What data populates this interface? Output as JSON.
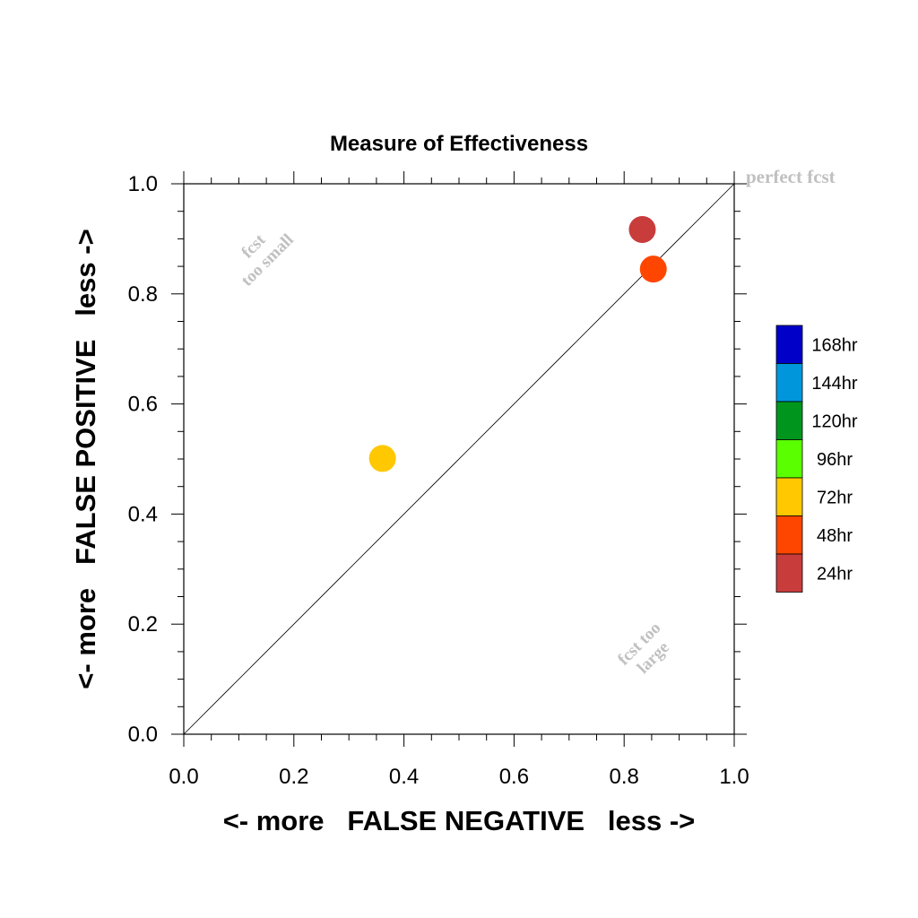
{
  "chart_data": {
    "type": "scatter",
    "title": "Measure of Effectiveness",
    "xlabel": "<- more   FALSE NEGATIVE   less ->",
    "ylabel": "<- more   FALSE POSITIVE   less ->",
    "xlim": [
      0.0,
      1.0
    ],
    "ylim": [
      0.0,
      1.0
    ],
    "x_ticks": [
      "0.0",
      "0.2",
      "0.4",
      "0.6",
      "0.8",
      "1.0"
    ],
    "y_ticks": [
      "0.0",
      "0.2",
      "0.4",
      "0.6",
      "0.8",
      "1.0"
    ],
    "grid": false,
    "diagonal_line": true,
    "annotations": {
      "perfect": "perfect fcst",
      "too_small_1": "fcst",
      "too_small_2": "too small",
      "too_large_1": "fcst too",
      "too_large_2": "large"
    },
    "legend": {
      "placement": "right",
      "entries": [
        {
          "label": "168hr",
          "color": "#0000c8"
        },
        {
          "label": "144hr",
          "color": "#0096dc"
        },
        {
          "label": "120hr",
          "color": "#00961e"
        },
        {
          "label": "96hr",
          "color": "#5aff00"
        },
        {
          "label": "72hr",
          "color": "#ffc800"
        },
        {
          "label": "48hr",
          "color": "#ff4600"
        },
        {
          "label": "24hr",
          "color": "#c83c3c"
        }
      ]
    },
    "points": [
      {
        "series": "24hr",
        "x": 0.833,
        "y": 0.917,
        "color": "#c83c3c"
      },
      {
        "series": "48hr",
        "x": 0.853,
        "y": 0.845,
        "color": "#ff4600"
      },
      {
        "series": "72hr",
        "x": 0.361,
        "y": 0.501,
        "color": "#ffc800"
      }
    ]
  }
}
